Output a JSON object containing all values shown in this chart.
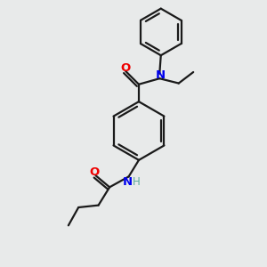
{
  "bg_color": "#e8eaea",
  "bond_color": "#1a1a1a",
  "N_color": "#0000ee",
  "O_color": "#ee0000",
  "H_color": "#5aaa9a",
  "line_width": 1.6,
  "fig_size": [
    3.0,
    3.0
  ],
  "dpi": 100,
  "xlim": [
    0,
    10
  ],
  "ylim": [
    0,
    10
  ]
}
